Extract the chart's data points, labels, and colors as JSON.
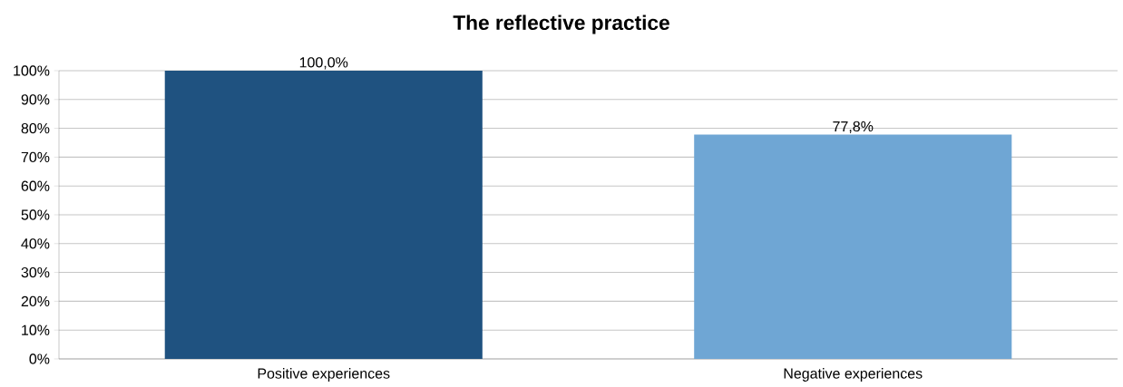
{
  "chart_data": {
    "type": "bar",
    "title": "The reflective practice",
    "categories": [
      "Positive experiences",
      "Negative experiences"
    ],
    "values": [
      100.0,
      77.8
    ],
    "colors": [
      "#1f5280",
      "#6fa6d4"
    ],
    "value_labels": [
      "100,0%",
      "77,8%"
    ],
    "ylim": [
      0,
      100
    ],
    "yticks": [
      {
        "value": 0,
        "label": "0%"
      },
      {
        "value": 10,
        "label": "10%"
      },
      {
        "value": 20,
        "label": "20%"
      },
      {
        "value": 30,
        "label": "30%"
      },
      {
        "value": 40,
        "label": "40%"
      },
      {
        "value": 50,
        "label": "50%"
      },
      {
        "value": 60,
        "label": "60%"
      },
      {
        "value": 70,
        "label": "70%"
      },
      {
        "value": 80,
        "label": "80%"
      },
      {
        "value": 90,
        "label": "90%"
      },
      {
        "value": 100,
        "label": "100%"
      }
    ],
    "grid": "y"
  }
}
